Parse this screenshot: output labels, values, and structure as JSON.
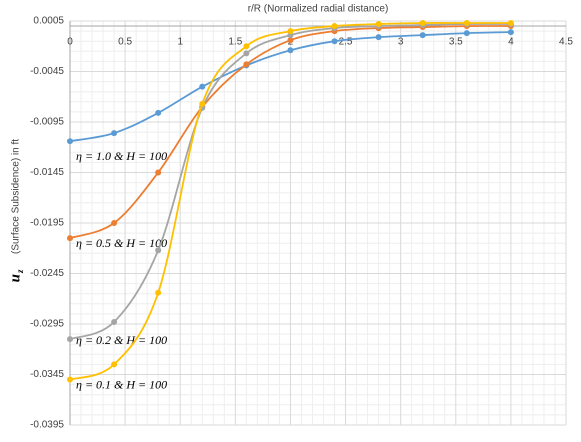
{
  "chart_data": {
    "type": "line",
    "xlabel": "r/R (Normalized radial distance)",
    "ylabel_symbol": "u",
    "ylabel_subscript": "z",
    "ylabel": "(Surface Subsidence) in ft",
    "x": [
      0,
      0.4,
      0.8,
      1.2,
      1.6,
      2.0,
      2.4,
      2.8,
      3.2,
      3.6,
      4.0
    ],
    "series": [
      {
        "name": "η = 1.0 & H = 100",
        "color": "#5b9bd5",
        "values": [
          -0.0114,
          -0.0106,
          -0.0086,
          -0.006,
          -0.0039,
          -0.0024,
          -0.0015,
          -0.0011,
          -0.0009,
          -0.0007,
          -0.0006
        ]
      },
      {
        "name": "η = 0.5 & H = 100",
        "color": "#ed7d31",
        "values": [
          -0.021,
          -0.0195,
          -0.0145,
          -0.008,
          -0.0038,
          -0.0014,
          -0.0005,
          -0.0002,
          -0.0001,
          0,
          0
        ]
      },
      {
        "name": "η = 0.2 & H = 100",
        "color": "#a5a5a5",
        "values": [
          -0.031,
          -0.0293,
          -0.0222,
          -0.0081,
          -0.0027,
          -0.0009,
          -0.0002,
          0,
          0.0001,
          0.0002,
          0.0002
        ]
      },
      {
        "name": "η = 0.1 & H = 100",
        "color": "#ffc000",
        "values": [
          -0.035,
          -0.0335,
          -0.0264,
          -0.0077,
          -0.002,
          -0.0005,
          0,
          0.0002,
          0.0003,
          0.0003,
          0.0003
        ]
      }
    ],
    "xlim": [
      0,
      4.5
    ],
    "xticks": [
      0,
      0.5,
      1,
      1.5,
      2,
      2.5,
      3,
      3.5,
      4,
      4.5
    ],
    "ylim": [
      -0.0395,
      0.0005
    ],
    "yticks": [
      0.0005,
      -0.0045,
      -0.0095,
      -0.0145,
      -0.0195,
      -0.0245,
      -0.0295,
      -0.0345,
      -0.0395
    ],
    "grid": true,
    "minor_grid": true
  }
}
